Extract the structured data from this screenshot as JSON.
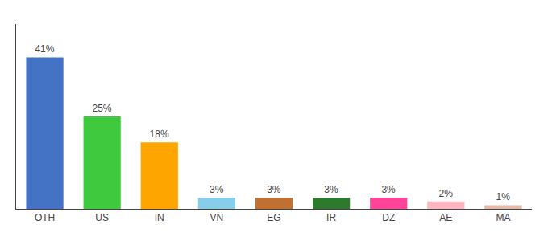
{
  "chart_data": {
    "type": "bar",
    "categories": [
      "OTH",
      "US",
      "IN",
      "VN",
      "EG",
      "IR",
      "DZ",
      "AE",
      "MA"
    ],
    "values": [
      41,
      25,
      18,
      3,
      3,
      3,
      3,
      2,
      1
    ],
    "value_labels": [
      "41%",
      "25%",
      "18%",
      "3%",
      "3%",
      "3%",
      "3%",
      "2%",
      "1%"
    ],
    "data_labels": true,
    "colors": [
      "#4472C4",
      "#3EC93E",
      "#FFA500",
      "#87CEEB",
      "#C07030",
      "#2D7A2D",
      "#FF4499",
      "#FFB6C1",
      "#E8B8A8"
    ],
    "ylim": [
      0,
      50
    ],
    "grid": false,
    "tick_labels": "x"
  }
}
